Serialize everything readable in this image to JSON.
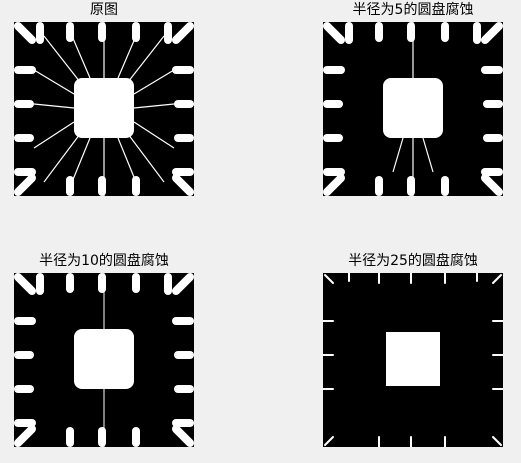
{
  "figure": {
    "panels": [
      {
        "id": "original",
        "title": "原图"
      },
      {
        "id": "erode-r5",
        "title": "半径为5的圆盘腐蚀"
      },
      {
        "id": "erode-r10",
        "title": "半径为10的圆盘腐蚀"
      },
      {
        "id": "erode-r25",
        "title": "半径为25的圆盘腐蚀"
      }
    ]
  }
}
